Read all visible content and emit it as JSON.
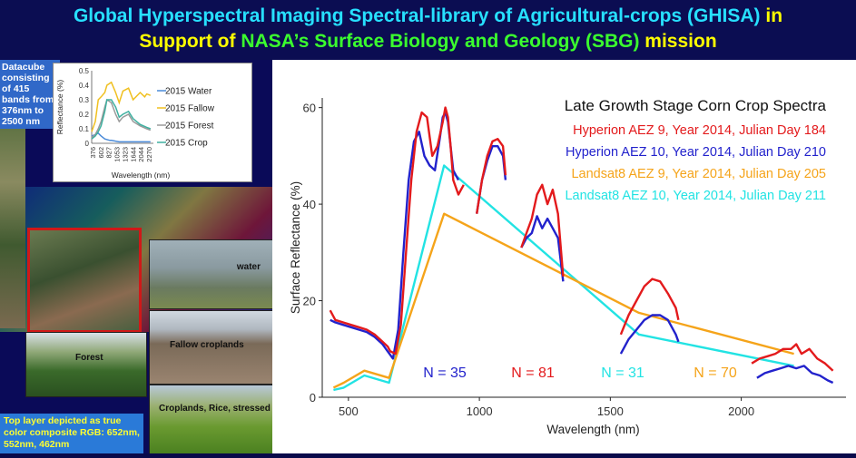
{
  "header": {
    "line1_a": "Global Hyperspectral Imaging Spectral-library of Agricultural-crops (GHISA) ",
    "line1_b": "in",
    "line2_a": "Support of ",
    "line2_b": "NASA’s Surface Biology and Geology (SBG)",
    "line2_c": " mission"
  },
  "left_panel": {
    "datacube_label": "Datacube consisting of 415 bands from 376nm to 2500 nm",
    "photo_labels": {
      "water": "water",
      "fallow": "Fallow croplands",
      "forest": "Forest",
      "crop": "Croplands, Rice, stressed"
    },
    "bottom_note": "Top layer depicted as true color composite RGB: 652nm, 552nm, 462nm"
  },
  "colors": {
    "red": "#e31a1c",
    "blue": "#2222cc",
    "orange": "#f5a41a",
    "cyan": "#22e3e3",
    "water_line": "#4a8ad8",
    "fallow_line": "#f0c020",
    "forest_line": "#9a9a9a",
    "crop_line": "#3fb0a0"
  },
  "chart_data": [
    {
      "type": "line",
      "title": "",
      "xlabel": "Wavelength (nm)",
      "ylabel": "Reflectance (%)",
      "x_tick_labels": [
        "376",
        "602",
        "827",
        "1053",
        "1323",
        "1644",
        "2044",
        "2270"
      ],
      "y_tick_labels": [
        "0",
        "0.1",
        "0.2",
        "0.3",
        "0.4",
        "0.5"
      ],
      "xlim": [
        376,
        2500
      ],
      "ylim": [
        0,
        0.5
      ],
      "legend_position": "right",
      "series": [
        {
          "name": "2015 Water",
          "color": "#4a8ad8",
          "x": [
            376,
            500,
            600,
            700,
            827,
            1000,
            1053,
            1323,
            1644,
            2044,
            2270,
            2400
          ],
          "y": [
            0.05,
            0.06,
            0.07,
            0.05,
            0.03,
            0.02,
            0.02,
            0.01,
            0.01,
            0.01,
            0.01,
            0.01
          ]
        },
        {
          "name": "2015 Fallow",
          "color": "#f0c020",
          "x": [
            376,
            500,
            602,
            700,
            827,
            900,
            1053,
            1200,
            1323,
            1450,
            1644,
            1800,
            2044,
            2200,
            2270,
            2400
          ],
          "y": [
            0.08,
            0.15,
            0.3,
            0.32,
            0.35,
            0.4,
            0.42,
            0.35,
            0.28,
            0.36,
            0.38,
            0.3,
            0.35,
            0.32,
            0.34,
            0.33
          ]
        },
        {
          "name": "2015 Forest",
          "color": "#9a9a9a",
          "x": [
            376,
            500,
            602,
            700,
            827,
            900,
            1053,
            1200,
            1323,
            1450,
            1644,
            1800,
            2044,
            2270,
            2400
          ],
          "y": [
            0.04,
            0.06,
            0.1,
            0.15,
            0.25,
            0.3,
            0.28,
            0.2,
            0.15,
            0.18,
            0.2,
            0.15,
            0.12,
            0.1,
            0.09
          ]
        },
        {
          "name": "2015 Crop",
          "color": "#3fb0a0",
          "x": [
            376,
            500,
            602,
            700,
            827,
            900,
            1053,
            1200,
            1323,
            1450,
            1644,
            1800,
            2044,
            2270,
            2400
          ],
          "y": [
            0.03,
            0.05,
            0.08,
            0.12,
            0.22,
            0.3,
            0.3,
            0.25,
            0.18,
            0.2,
            0.22,
            0.17,
            0.13,
            0.11,
            0.1
          ]
        }
      ]
    },
    {
      "type": "line",
      "title": "Late Growth Stage Corn Crop Spectra",
      "xlabel": "Wavelength (nm)",
      "ylabel": "Surface Reflectance (%)",
      "xlim": [
        400,
        2400
      ],
      "ylim": [
        0,
        62
      ],
      "x_ticks": [
        500,
        1000,
        1500,
        2000
      ],
      "y_ticks": [
        0,
        20,
        40,
        60
      ],
      "grid": false,
      "legend_position": "top-right",
      "series": [
        {
          "name": "Hyperion AEZ 9, Year 2014, Julian Day 184",
          "color": "#e31a1c",
          "segments": [
            {
              "x": [
                430,
                450,
                480,
                510,
                540,
                570,
                600,
                630,
                650,
                660,
                680,
                700,
                720,
                740,
                760,
                780,
                800,
                820,
                840,
                860,
                870,
                880,
                890,
                900,
                920,
                940
              ],
              "y": [
                18,
                16,
                15.5,
                15,
                14.5,
                14,
                13,
                11.5,
                10.5,
                9.5,
                9,
                15,
                30,
                45,
                55,
                59,
                58,
                50,
                52,
                57,
                60,
                58,
                52,
                45,
                42,
                44
              ]
            },
            {
              "x": [
                990,
                1010,
                1030,
                1050,
                1070,
                1090,
                1100
              ],
              "y": [
                38,
                45,
                50,
                53,
                53.5,
                52,
                46
              ]
            },
            {
              "x": [
                1160,
                1180,
                1200,
                1220,
                1240,
                1260,
                1280,
                1300,
                1320
              ],
              "y": [
                31,
                34,
                37,
                42,
                44,
                40,
                43,
                38,
                25
              ]
            },
            {
              "x": [
                1540,
                1570,
                1600,
                1630,
                1660,
                1690,
                1720,
                1750,
                1760
              ],
              "y": [
                13,
                17,
                20,
                23,
                24.5,
                24,
                21.5,
                18.5,
                16
              ]
            },
            {
              "x": [
                2040,
                2070,
                2100,
                2130,
                2160,
                2190,
                2210,
                2230,
                2260,
                2290,
                2320,
                2350
              ],
              "y": [
                7,
                8,
                8.5,
                9,
                10,
                10,
                11,
                9,
                10,
                8,
                7,
                5.5
              ]
            }
          ]
        },
        {
          "name": "Hyperion AEZ 10, Year 2014, Julian Day 210",
          "color": "#2222cc",
          "segments": [
            {
              "x": [
                430,
                450,
                480,
                510,
                540,
                570,
                600,
                630,
                650,
                670,
                690,
                710,
                730,
                750,
                770,
                790,
                810,
                830,
                850,
                860,
                870,
                880,
                890,
                900,
                920
              ],
              "y": [
                16,
                15.5,
                15,
                14.5,
                14,
                13.5,
                12.5,
                11,
                9.5,
                8,
                14,
                30,
                45,
                53,
                55,
                50,
                48,
                47,
                54,
                58,
                59,
                57,
                52,
                47,
                45
              ]
            },
            {
              "x": [
                990,
                1010,
                1030,
                1050,
                1070,
                1090,
                1100
              ],
              "y": [
                38,
                45,
                49,
                52,
                52,
                50,
                45
              ]
            },
            {
              "x": [
                1160,
                1180,
                1200,
                1220,
                1240,
                1260,
                1280,
                1300,
                1320
              ],
              "y": [
                31,
                33,
                34,
                37.5,
                35,
                37,
                35,
                33,
                24
              ]
            },
            {
              "x": [
                1540,
                1570,
                1600,
                1630,
                1660,
                1690,
                1720,
                1750,
                1760
              ],
              "y": [
                9,
                12,
                14,
                16,
                17,
                17,
                16,
                13,
                11.5
              ]
            },
            {
              "x": [
                2060,
                2090,
                2120,
                2150,
                2180,
                2210,
                2240,
                2270,
                2300,
                2330,
                2350
              ],
              "y": [
                4,
                5,
                5.5,
                6,
                6.5,
                6,
                6.5,
                5,
                4.5,
                3.5,
                3
              ]
            }
          ]
        },
        {
          "name": "Landsat8 AEZ 9, Year 2014, Julian Day 205",
          "color": "#f5a41a",
          "segments": [
            {
              "x": [
                443,
                482,
                561,
                655,
                865,
                1609,
                2201
              ],
              "y": [
                2,
                3,
                5.5,
                4,
                38,
                17.5,
                9
              ]
            }
          ]
        },
        {
          "name": "Landsat8 AEZ 10, Year 2014, Julian Day 211",
          "color": "#22e3e3",
          "segments": [
            {
              "x": [
                443,
                482,
                561,
                655,
                865,
                1609,
                2201
              ],
              "y": [
                1.5,
                2,
                4.5,
                3,
                48,
                13,
                6.5
              ]
            }
          ]
        }
      ],
      "annotations": [
        {
          "text": "N = 35",
          "color": "#2222cc"
        },
        {
          "text": "N = 81",
          "color": "#e31a1c"
        },
        {
          "text": "N = 31",
          "color": "#22e3e3"
        },
        {
          "text": "N = 70",
          "color": "#f5a41a"
        }
      ]
    }
  ]
}
